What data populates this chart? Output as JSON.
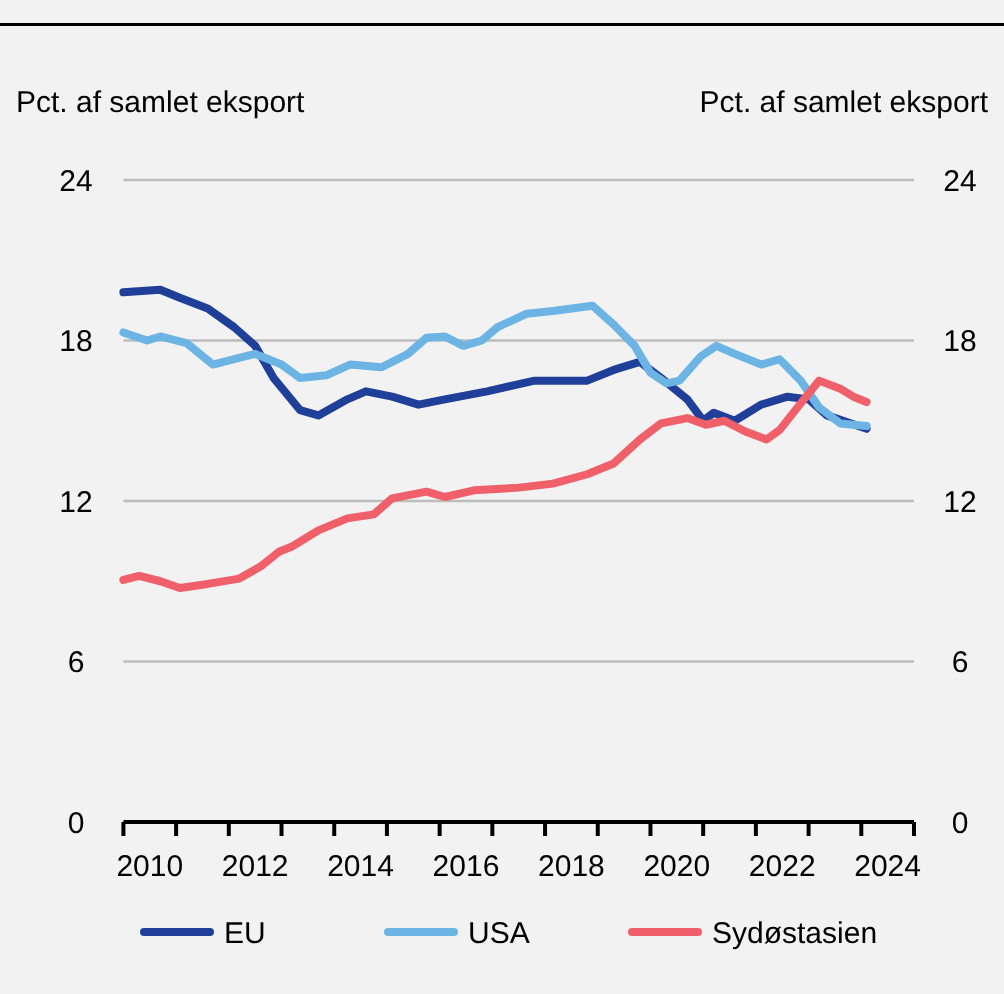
{
  "chart_data": {
    "type": "line",
    "ylabel": "Pct. af samlet eksport",
    "y2label": "Pct. af samlet eksport",
    "xlim": [
      2010,
      2025
    ],
    "xticks": [
      {
        "value": 2010,
        "label": null
      },
      {
        "value": 2010.5,
        "label": "2010"
      },
      {
        "value": 2011,
        "label": null
      },
      {
        "value": 2012,
        "label": null
      },
      {
        "value": 2012.5,
        "label": "2012"
      },
      {
        "value": 2013,
        "label": null
      },
      {
        "value": 2014,
        "label": null
      },
      {
        "value": 2014.5,
        "label": "2014"
      },
      {
        "value": 2015,
        "label": null
      },
      {
        "value": 2016,
        "label": null
      },
      {
        "value": 2016.5,
        "label": "2016"
      },
      {
        "value": 2017,
        "label": null
      },
      {
        "value": 2018,
        "label": null
      },
      {
        "value": 2018.5,
        "label": "2018"
      },
      {
        "value": 2019,
        "label": null
      },
      {
        "value": 2020,
        "label": null
      },
      {
        "value": 2020.5,
        "label": "2020"
      },
      {
        "value": 2021,
        "label": null
      },
      {
        "value": 2022,
        "label": null
      },
      {
        "value": 2022.5,
        "label": "2022"
      },
      {
        "value": 2023,
        "label": null
      },
      {
        "value": 2024,
        "label": null
      },
      {
        "value": 2024.5,
        "label": "2024"
      },
      {
        "value": 2025,
        "label": null
      }
    ],
    "ylim": [
      0,
      24
    ],
    "yticks": [
      0,
      6,
      12,
      18,
      24
    ],
    "y2lim": [
      0,
      24
    ],
    "y2ticks": [
      0,
      6,
      12,
      18,
      24
    ],
    "grid": "y",
    "legend": "bottom",
    "line_style": "solid",
    "series": [
      {
        "name": "EU",
        "color": "#1f3f99",
        "x": [
          2010.0,
          2010.7,
          2011.07,
          2011.6,
          2012.1,
          2012.5,
          2012.85,
          2013.35,
          2013.7,
          2014.25,
          2014.6,
          2015.1,
          2015.6,
          2016.1,
          2016.9,
          2017.8,
          2018.8,
          2019.3,
          2019.8,
          2020.2,
          2020.7,
          2021.0,
          2021.2,
          2021.6,
          2022.1,
          2022.6,
          2023.0,
          2023.35,
          2024.1
        ],
        "values": [
          19.8,
          19.9,
          19.6,
          19.2,
          18.5,
          17.8,
          16.6,
          15.4,
          15.2,
          15.8,
          16.1,
          15.9,
          15.6,
          15.8,
          16.1,
          16.5,
          16.5,
          16.9,
          17.2,
          16.6,
          15.8,
          15.0,
          15.3,
          15.0,
          15.6,
          15.9,
          15.8,
          15.2,
          14.7
        ]
      },
      {
        "name": "USA",
        "color": "#6cb4e4",
        "x": [
          2010.0,
          2010.45,
          2010.7,
          2011.2,
          2011.7,
          2012.1,
          2012.5,
          2013.0,
          2013.35,
          2013.85,
          2014.3,
          2014.9,
          2015.4,
          2015.75,
          2016.1,
          2016.45,
          2016.8,
          2017.1,
          2017.65,
          2018.15,
          2018.9,
          2019.3,
          2019.7,
          2020.0,
          2020.3,
          2020.55,
          2020.95,
          2021.25,
          2021.6,
          2022.1,
          2022.45,
          2022.85,
          2023.2,
          2023.6,
          2024.1
        ],
        "values": [
          18.3,
          18.0,
          18.15,
          17.9,
          17.1,
          17.3,
          17.5,
          17.1,
          16.6,
          16.7,
          17.1,
          17.0,
          17.5,
          18.1,
          18.15,
          17.8,
          18.0,
          18.5,
          19.0,
          19.1,
          19.3,
          18.6,
          17.8,
          16.8,
          16.4,
          16.5,
          17.4,
          17.8,
          17.5,
          17.1,
          17.3,
          16.5,
          15.5,
          14.9,
          14.8
        ]
      },
      {
        "name": "Sydøstasien",
        "color": "#f0606a",
        "x": [
          2010.0,
          2010.3,
          2010.7,
          2011.07,
          2011.6,
          2012.2,
          2012.6,
          2012.95,
          2013.2,
          2013.7,
          2014.25,
          2014.75,
          2015.1,
          2015.75,
          2016.1,
          2016.65,
          2017.5,
          2018.15,
          2018.8,
          2019.3,
          2019.8,
          2020.2,
          2020.7,
          2021.05,
          2021.4,
          2021.8,
          2022.2,
          2022.45,
          2022.85,
          2023.2,
          2023.6,
          2023.85,
          2024.1
        ],
        "values": [
          9.05,
          9.2,
          9.0,
          8.75,
          8.9,
          9.1,
          9.55,
          10.1,
          10.3,
          10.9,
          11.35,
          11.5,
          12.1,
          12.35,
          12.15,
          12.4,
          12.5,
          12.65,
          13.0,
          13.4,
          14.3,
          14.9,
          15.1,
          14.85,
          15.0,
          14.6,
          14.3,
          14.65,
          15.65,
          16.5,
          16.2,
          15.9,
          15.7
        ]
      }
    ]
  }
}
